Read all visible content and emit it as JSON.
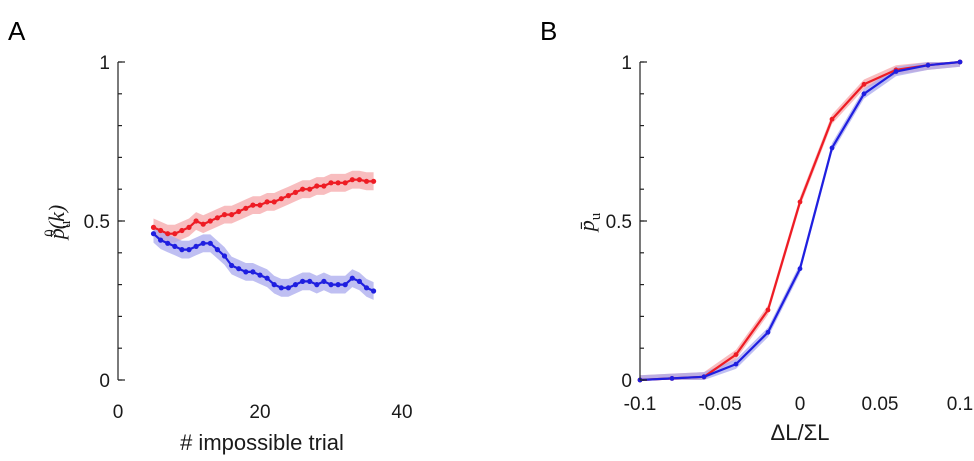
{
  "panels": {
    "a": {
      "label": "A"
    },
    "b": {
      "label": "B"
    }
  },
  "chart_data": [
    {
      "type": "line",
      "panel": "A",
      "title": "",
      "xlabel": "# impossible trial",
      "ylabel": "p̄u0(k)",
      "ylabel_parts": {
        "base": "p̄",
        "sub": "u",
        "sup": "0",
        "arg": "(k)"
      },
      "xlim": [
        0,
        40
      ],
      "ylim": [
        0,
        1
      ],
      "xticks": [
        0,
        20,
        40
      ],
      "xtick_labels": [
        "0",
        "20",
        "40"
      ],
      "yticks": [
        0,
        0.5,
        1
      ],
      "ytick_labels": [
        "0",
        "0.5",
        "1"
      ],
      "grid": false,
      "colors": {
        "red": "#ee1c24",
        "blue": "#1f1fe0",
        "red_band": "#f6a7aa",
        "blue_band": "#a9a9ee"
      },
      "x": [
        5,
        6,
        7,
        8,
        9,
        10,
        11,
        12,
        13,
        14,
        15,
        16,
        17,
        18,
        19,
        20,
        21,
        22,
        23,
        24,
        25,
        26,
        27,
        28,
        29,
        30,
        31,
        32,
        33,
        34,
        35,
        36
      ],
      "series": [
        {
          "color": "red",
          "values": [
            0.48,
            0.47,
            0.46,
            0.46,
            0.47,
            0.48,
            0.5,
            0.49,
            0.5,
            0.51,
            0.52,
            0.52,
            0.53,
            0.54,
            0.55,
            0.55,
            0.56,
            0.56,
            0.57,
            0.58,
            0.59,
            0.6,
            0.6,
            0.61,
            0.61,
            0.62,
            0.62,
            0.62,
            0.63,
            0.63,
            0.625,
            0.625
          ],
          "band": 0.028
        },
        {
          "color": "blue",
          "values": [
            0.46,
            0.44,
            0.43,
            0.42,
            0.41,
            0.41,
            0.42,
            0.43,
            0.43,
            0.41,
            0.39,
            0.36,
            0.35,
            0.34,
            0.34,
            0.33,
            0.32,
            0.3,
            0.29,
            0.29,
            0.3,
            0.31,
            0.31,
            0.3,
            0.31,
            0.3,
            0.3,
            0.3,
            0.32,
            0.31,
            0.29,
            0.28
          ],
          "band": 0.028
        }
      ]
    },
    {
      "type": "line",
      "panel": "B",
      "title": "",
      "xlabel": "ΔL/ΣL",
      "ylabel": "p̄u",
      "ylabel_parts": {
        "base": "p̄",
        "sub": "u"
      },
      "xlim": [
        -0.1,
        0.1
      ],
      "ylim": [
        0,
        1
      ],
      "xticks": [
        -0.1,
        -0.05,
        0,
        0.05,
        0.1
      ],
      "xtick_labels": [
        "-0.1",
        "-0.05",
        "0",
        "0.05",
        "0.1"
      ],
      "yticks": [
        0,
        0.5,
        1
      ],
      "ytick_labels": [
        "0",
        "0.5",
        "1"
      ],
      "grid": false,
      "colors": {
        "red": "#ee1c24",
        "blue": "#1f1fe0",
        "red_band": "#f6a7aa",
        "blue_band": "#a9a9ee"
      },
      "x": [
        -0.1,
        -0.08,
        -0.06,
        -0.04,
        -0.02,
        0,
        0.02,
        0.04,
        0.06,
        0.08,
        0.1
      ],
      "series": [
        {
          "color": "red",
          "values": [
            0.0,
            0.005,
            0.01,
            0.08,
            0.22,
            0.56,
            0.82,
            0.93,
            0.975,
            0.99,
            1.0
          ],
          "band": 0.015
        },
        {
          "color": "blue",
          "values": [
            0.0,
            0.005,
            0.01,
            0.05,
            0.15,
            0.35,
            0.73,
            0.9,
            0.97,
            0.99,
            1.0
          ],
          "band": 0.015
        }
      ]
    }
  ]
}
